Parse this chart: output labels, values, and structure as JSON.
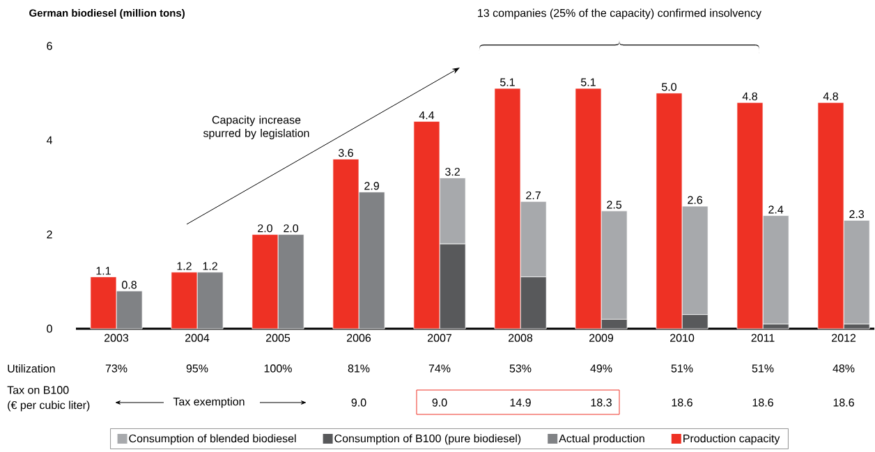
{
  "chart_data": {
    "type": "bar",
    "ylabel": "German biodiesel (million tons)",
    "categories": [
      "2003",
      "2004",
      "2005",
      "2006",
      "2007",
      "2008",
      "2009",
      "2010",
      "2011",
      "2012"
    ],
    "ylim": [
      0,
      6
    ],
    "yticks": [
      0,
      2,
      4,
      6
    ],
    "legend": "bottom",
    "series": [
      {
        "name": "Consumption of blended biodiesel",
        "color": "#a7a9ac",
        "values": [
          null,
          null,
          null,
          null,
          1.4,
          1.6,
          2.3,
          2.3,
          2.3,
          2.2
        ],
        "base": [
          null,
          null,
          null,
          null,
          1.8,
          1.1,
          0.2,
          0.3,
          0.1,
          0.1
        ],
        "value_labels": [
          null,
          null,
          null,
          null,
          "3.2",
          "2.7",
          "2.5",
          "2.6",
          "2.4",
          "2.3"
        ]
      },
      {
        "name": "Consumption of B100 (pure biodiesel)",
        "color": "#58595b",
        "values": [
          null,
          null,
          null,
          null,
          1.8,
          1.1,
          0.2,
          0.3,
          0.1,
          0.1
        ]
      },
      {
        "name": "Actual production",
        "color": "#808285",
        "values": [
          0.8,
          1.2,
          2.0,
          2.9,
          null,
          null,
          null,
          null,
          null,
          null
        ],
        "value_labels": [
          "0.8",
          "1.2",
          "2.0",
          "2.9",
          null,
          null,
          null,
          null,
          null,
          null
        ]
      },
      {
        "name": "Production capacity",
        "color": "#ee3124",
        "values": [
          1.1,
          1.2,
          2.0,
          3.6,
          4.4,
          5.1,
          5.1,
          5.0,
          4.8,
          4.8
        ],
        "value_labels": [
          "1.1",
          "1.2",
          "2.0",
          "3.6",
          "4.4",
          "5.1",
          "5.1",
          "5.0",
          "4.8",
          "4.8"
        ]
      }
    ],
    "annotations": [
      "13 companies (25% of the capacity) confirmed insolvency",
      "Capacity increase spurred by legislation",
      "Utilization",
      "73%",
      "95%",
      "100%",
      "81%",
      "74%",
      "53%",
      "49%",
      "51%",
      "51%",
      "48%",
      "Tax on B100",
      "(€ per cubic liter)",
      "Tax exemption",
      "9.0",
      "9.0",
      "14.9",
      "18.3",
      "18.6",
      "18.6",
      "18.6"
    ]
  }
}
